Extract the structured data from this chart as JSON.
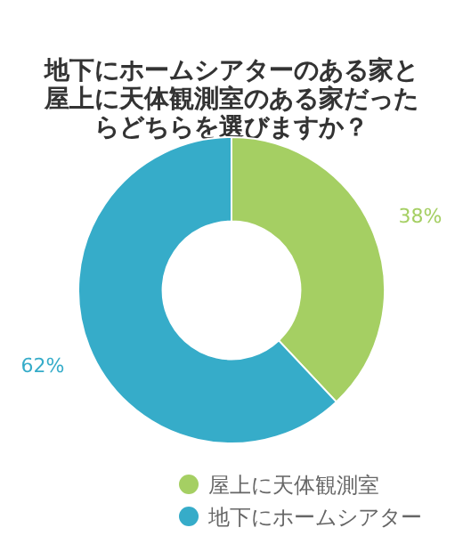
{
  "chart_data": {
    "type": "donut",
    "title": "地下にホームシアターのある家と屋上に天体観測室のある家だったらどちらを選びますか？",
    "categories": [
      "屋上に天体観測室",
      "地下にホームシアター"
    ],
    "values": [
      38,
      62
    ],
    "colors": [
      "#a5cf63",
      "#36acc9"
    ],
    "value_labels": [
      "38%",
      "62%"
    ],
    "legend": "bottom"
  }
}
